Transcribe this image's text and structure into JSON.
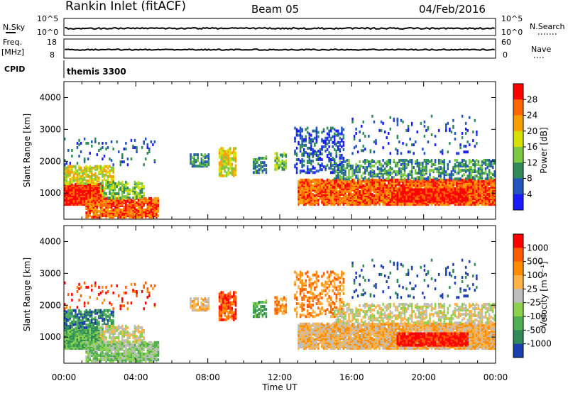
{
  "header": {
    "station": "Rankin Inlet (fitACF)",
    "beam": "Beam 05",
    "date": "04/Feb/2016"
  },
  "summary_panels": {
    "nsky_label": "N.Sky",
    "nsky_ticks": [
      "10^5",
      "10^0"
    ],
    "nsearch_label": "N.Search",
    "nsearch_ticks": [
      "10^5",
      "10^0"
    ],
    "freq_label_1": "Freq.",
    "freq_label_2": "[MHz]",
    "freq_ticks": [
      "18",
      "8"
    ],
    "nave_label": "Nave",
    "nave_ticks": [
      "60",
      "0"
    ],
    "cpid_label": "CPID",
    "cpid_value": "themis 3300"
  },
  "chart_data": [
    {
      "type": "heatmap",
      "quantity": "Power",
      "ylabel": "Slant Range [km]",
      "ylim": [
        180,
        4500
      ],
      "yticks": [
        "1000",
        "2000",
        "3000",
        "4000"
      ],
      "xlim": [
        0,
        24
      ],
      "colorbar_label": "Power [dB]",
      "colorbar_ticks": [
        "28",
        "24",
        "20",
        "16",
        "12",
        "8",
        "4"
      ],
      "colors": [
        "#1a1aff",
        "#2255bb",
        "#2e8b57",
        "#7ac943",
        "#d8e000",
        "#f5a000",
        "#ff6600",
        "#ff0000"
      ],
      "grid": false
    },
    {
      "type": "heatmap",
      "quantity": "Velocity",
      "ylabel": "Slant Range [km]",
      "ylim": [
        180,
        4500
      ],
      "yticks": [
        "1000",
        "2000",
        "3000",
        "4000"
      ],
      "xlim": [
        0,
        24
      ],
      "xticks": [
        "00:00",
        "04:00",
        "08:00",
        "12:00",
        "16:00",
        "20:00",
        "00:00"
      ],
      "xlabel": "Time UT",
      "colorbar_label": "Velocity [m s⁻¹]",
      "colorbar_ticks": [
        "1000",
        "500",
        "100",
        "25",
        "-25",
        "-100",
        "-500",
        "-1000"
      ],
      "colors": [
        "#1a3fb0",
        "#2e8b57",
        "#4caf50",
        "#8bd14b",
        "#bdbdbd",
        "#ffb347",
        "#ff8c00",
        "#ff5a00",
        "#ff0000"
      ],
      "ground_scatter_color": "#bdbdbd",
      "grid": false
    }
  ]
}
